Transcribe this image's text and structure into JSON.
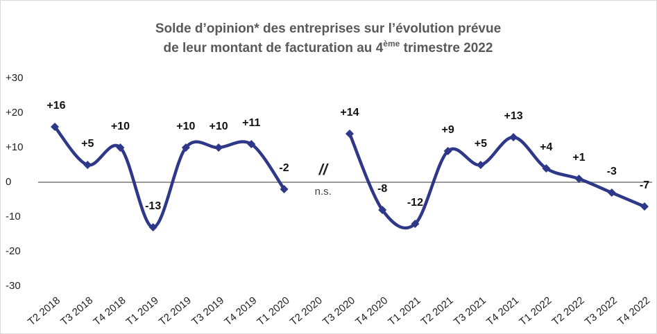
{
  "chart_data": {
    "type": "line",
    "title": [
      "Solde d’opinion* des entreprises sur l’évolution prévue",
      [
        "de leur montant de facturation au 4",
        "ème",
        " trimestre 2022"
      ]
    ],
    "categories": [
      "T2 2018",
      "T3 2018",
      "T4 2018",
      "T1 2019",
      "T2 2019",
      "T3 2019",
      "T4 2019",
      "T1 2020",
      "T2 2020",
      "T3 2020",
      "T4 2020",
      "T1 2021",
      "T2 2021",
      "T3 2021",
      "T4 2021",
      "T1 2022",
      "T2 2022",
      "T3 2022",
      "T4 2022"
    ],
    "series": [
      {
        "name": "Solde d’opinion",
        "color": "#2e3788",
        "values": [
          16,
          5,
          10,
          -13,
          10,
          10,
          11,
          -2,
          null,
          14,
          -8,
          -12,
          9,
          5,
          13,
          4,
          1,
          -3,
          -7
        ],
        "value_labels": [
          "+16",
          "+5",
          "+10",
          "-13",
          "+10",
          "+10",
          "+11",
          "-2",
          null,
          "+14",
          "-8",
          "-12",
          "+9",
          "+5",
          "+13",
          "+4",
          "+1",
          "-3",
          "-7"
        ]
      }
    ],
    "annotations": [
      "//",
      "n.s."
    ],
    "ylim": [
      -30,
      30
    ],
    "yticks": [
      {
        "value": 30,
        "label": "+30"
      },
      {
        "value": 20,
        "label": "+20"
      },
      {
        "value": 10,
        "label": "+10"
      },
      0,
      {
        "value": -10,
        "label": "-10"
      },
      {
        "value": -20,
        "label": "-20"
      },
      {
        "value": -30,
        "label": "-30"
      }
    ],
    "smooth": true
  }
}
